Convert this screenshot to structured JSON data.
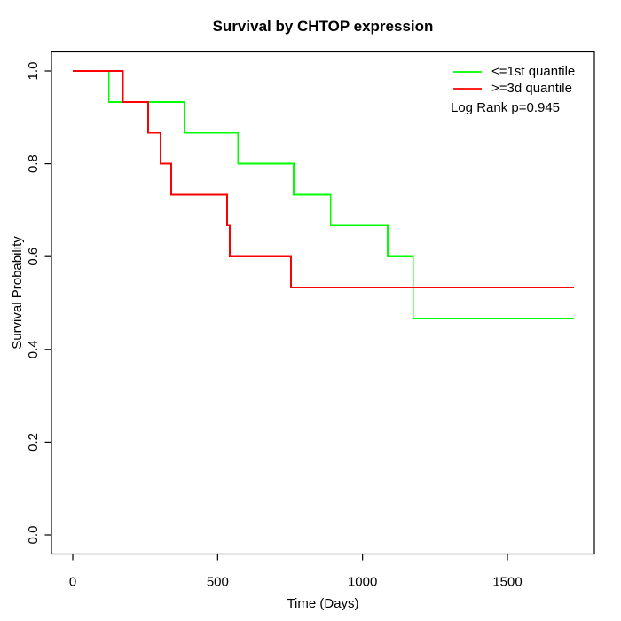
{
  "chart_data": {
    "type": "line",
    "subtype": "kaplan-meier-step-curve",
    "title": "Survival by CHTOP expression",
    "xlabel": "Time (Days)",
    "ylabel": "Survival Probability",
    "xlim": [
      0,
      1730
    ],
    "ylim": [
      0.0,
      1.0
    ],
    "grid": false,
    "legend_position": "top-right-inside",
    "annotation": "Log Rank p=0.945",
    "xticks": [
      0,
      500,
      1000,
      1500
    ],
    "xtick_labels": [
      "0",
      "500",
      "1000",
      "1500"
    ],
    "yticks": [
      0,
      0.2,
      0.4,
      0.6,
      0.8,
      1
    ],
    "ytick_labels": [
      "0.0",
      "0.2",
      "0.4",
      "0.6",
      "0.8",
      "1.0"
    ],
    "series": [
      {
        "name": "<=1st quantile",
        "color": "#00FF00",
        "steps": [
          [
            0,
            1.0
          ],
          [
            125,
            0.9333
          ],
          [
            385,
            0.8667
          ],
          [
            570,
            0.8
          ],
          [
            762,
            0.7333
          ],
          [
            890,
            0.6667
          ],
          [
            1087,
            0.6
          ],
          [
            1175,
            0.4667
          ],
          [
            1730,
            0.4667
          ]
        ]
      },
      {
        "name": ">=3d quantile",
        "color": "#FF0000",
        "steps": [
          [
            0,
            1.0
          ],
          [
            174,
            0.9333
          ],
          [
            260,
            0.8667
          ],
          [
            303,
            0.8
          ],
          [
            340,
            0.7333
          ],
          [
            533,
            0.6667
          ],
          [
            542,
            0.6
          ],
          [
            753,
            0.5333
          ],
          [
            1730,
            0.5333
          ]
        ]
      }
    ]
  },
  "colors": {
    "axis": "#000000",
    "text": "#000000",
    "background": "#FFFFFF"
  }
}
